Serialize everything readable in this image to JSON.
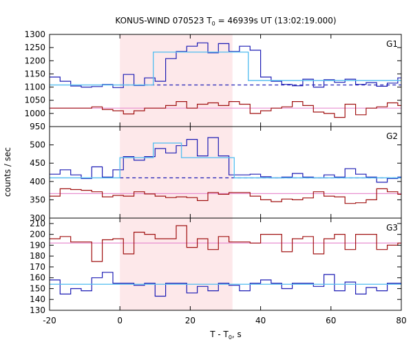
{
  "chart_data": {
    "type": "line",
    "title": "KONUS-WIND 070523 T",
    "title_sub": "0",
    "title_rest": " = 46939s UT (13:02:19.000)",
    "xlabel": "T - T",
    "xlabel_sub": "0",
    "xlabel_rest": ", s",
    "ylabel": "counts / sec",
    "xlim": [
      -20,
      80
    ],
    "xticks": [
      -20,
      0,
      20,
      40,
      60,
      80
    ],
    "highlight_interval": [
      0,
      32
    ],
    "colors": {
      "highlight": "#fde8ea",
      "blue": "#1b1bb4",
      "red": "#a01010",
      "cyan": "#5bc0f0",
      "pink": "#e88fd0"
    },
    "panels": [
      {
        "label": "G1",
        "ylim": [
          950,
          1300
        ],
        "yticks": [
          950,
          1000,
          1050,
          1100,
          1150,
          1200,
          1250,
          1300
        ],
        "x_edges": [
          -20,
          -17,
          -14,
          -11,
          -8,
          -5,
          -2,
          1,
          4,
          7,
          10,
          13,
          16,
          19,
          22,
          25,
          28,
          31,
          34,
          37,
          40,
          43,
          46,
          49,
          52,
          55,
          58,
          61,
          64,
          67,
          70,
          73,
          76,
          79,
          80
        ],
        "blue": [
          1138,
          1122,
          1104,
          1100,
          1102,
          1110,
          1098,
          1148,
          1106,
          1135,
          1122,
          1208,
          1235,
          1255,
          1268,
          1230,
          1265,
          1235,
          1255,
          1240,
          1138,
          1122,
          1110,
          1105,
          1130,
          1100,
          1128,
          1118,
          1130,
          1110,
          1117,
          1103,
          1115,
          1135
        ],
        "red": [
          1020,
          1020,
          1020,
          1020,
          1025,
          1015,
          1010,
          998,
          1010,
          1020,
          1020,
          1030,
          1045,
          1020,
          1035,
          1040,
          1030,
          1045,
          1035,
          1000,
          1010,
          1020,
          1025,
          1045,
          1030,
          1005,
          1000,
          985,
          1035,
          995,
          1020,
          1025,
          1040,
          1030
        ],
        "bg_level_blue": 1108,
        "bg_level_red": 1020,
        "fit": {
          "x": [
            -20,
            0,
            0,
            9.5,
            9.5,
            36.5,
            36.5,
            80
          ],
          "y": [
            1108,
            1108,
            1108,
            1108,
            1233,
            1233,
            1125,
            1125
          ]
        }
      },
      {
        "label": "G2",
        "ylim": [
          300,
          550
        ],
        "yticks": [
          300,
          350,
          400,
          450,
          500
        ],
        "x_edges": [
          -20,
          -17,
          -14,
          -11,
          -8,
          -5,
          -2,
          1,
          4,
          7,
          10,
          13,
          16,
          19,
          22,
          25,
          28,
          31,
          34,
          37,
          40,
          43,
          46,
          49,
          52,
          55,
          58,
          61,
          64,
          67,
          70,
          73,
          76,
          79,
          80
        ],
        "blue": [
          420,
          432,
          418,
          408,
          440,
          412,
          432,
          468,
          458,
          468,
          490,
          478,
          498,
          515,
          470,
          520,
          470,
          418,
          418,
          420,
          413,
          410,
          412,
          422,
          412,
          410,
          418,
          412,
          435,
          420,
          412,
          398,
          408,
          412
        ],
        "red": [
          360,
          380,
          378,
          376,
          372,
          358,
          362,
          360,
          372,
          366,
          360,
          356,
          358,
          356,
          348,
          370,
          365,
          370,
          370,
          360,
          350,
          345,
          352,
          350,
          355,
          372,
          360,
          358,
          340,
          342,
          350,
          380,
          372,
          365
        ],
        "bg_level_blue": 410,
        "bg_level_red": 367,
        "fit": {
          "x": [
            -20,
            0,
            0,
            9.5,
            9.5,
            17.5,
            17.5,
            32.5,
            32.5,
            80
          ],
          "y": [
            410,
            410,
            465,
            465,
            505,
            505,
            465,
            465,
            410,
            410
          ]
        }
      },
      {
        "label": "G3",
        "ylim": [
          130,
          215
        ],
        "yticks": [
          130,
          140,
          150,
          160,
          170,
          180,
          190,
          200,
          210
        ],
        "x_edges": [
          -20,
          -17,
          -14,
          -11,
          -8,
          -5,
          -2,
          1,
          4,
          7,
          10,
          13,
          16,
          19,
          22,
          25,
          28,
          31,
          34,
          37,
          40,
          43,
          46,
          49,
          52,
          55,
          58,
          61,
          64,
          67,
          70,
          73,
          76,
          79,
          80
        ],
        "blue": [
          158,
          145,
          150,
          148,
          160,
          165,
          155,
          155,
          153,
          155,
          143,
          155,
          155,
          146,
          152,
          148,
          155,
          153,
          148,
          155,
          158,
          155,
          150,
          155,
          155,
          152,
          163,
          148,
          156,
          145,
          151,
          148,
          155,
          155
        ],
        "red": [
          196,
          198,
          193,
          193,
          175,
          195,
          196,
          182,
          202,
          200,
          196,
          196,
          208,
          188,
          196,
          186,
          198,
          193,
          193,
          192,
          200,
          200,
          184,
          196,
          198,
          182,
          196,
          200,
          186,
          200,
          200,
          186,
          190,
          192
        ],
        "bg_level_blue": 154,
        "bg_level_red": 192,
        "fit": {
          "x": [
            -20,
            80
          ],
          "y": [
            154,
            154
          ]
        }
      }
    ]
  }
}
